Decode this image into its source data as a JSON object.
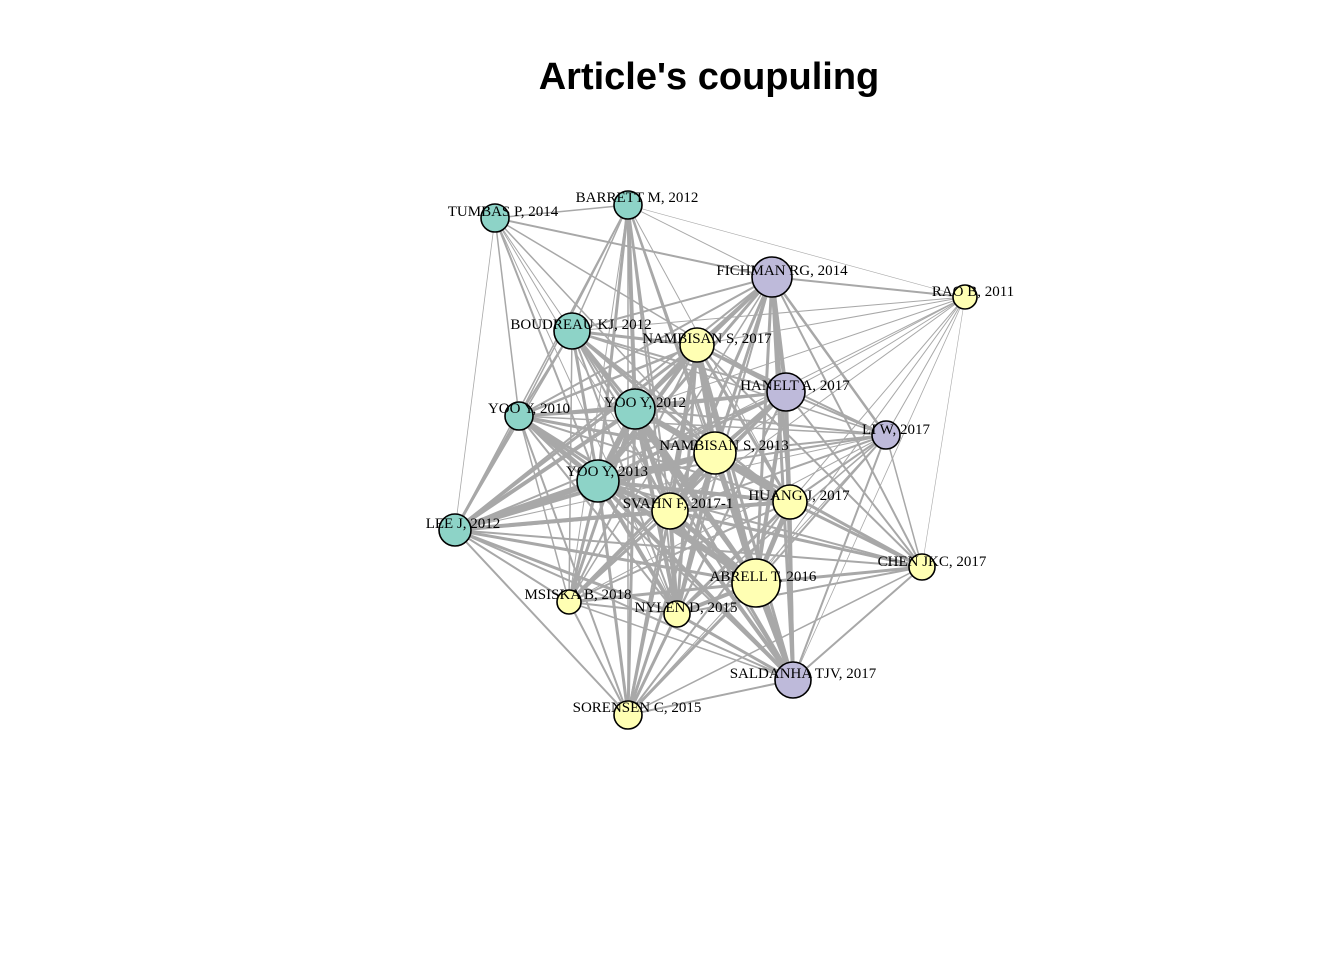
{
  "title": "Article's coupuling",
  "colors": {
    "cluster_1": "#8dd3c7",
    "cluster_2": "#ffffb3",
    "cluster_3": "#bebada",
    "edge": "#a8a8a8"
  },
  "nodes": [
    {
      "id": "tumbas",
      "label": "TUMBAS P, 2014",
      "cluster": 1
    },
    {
      "id": "barrett",
      "label": "BARRETT M, 2012",
      "cluster": 1
    },
    {
      "id": "fichman",
      "label": "FICHMAN RG, 2014",
      "cluster": 3
    },
    {
      "id": "rao",
      "label": "RAO B, 2011",
      "cluster": 2
    },
    {
      "id": "boudreau",
      "label": "BOUDREAU KJ, 2012",
      "cluster": 1
    },
    {
      "id": "nambisan17",
      "label": "NAMBISAN S, 2017",
      "cluster": 2
    },
    {
      "id": "hanelt",
      "label": "HANELT A, 2017",
      "cluster": 3
    },
    {
      "id": "yoo2010",
      "label": "YOO Y, 2010",
      "cluster": 1
    },
    {
      "id": "yoo2012",
      "label": "YOO Y, 2012",
      "cluster": 1
    },
    {
      "id": "liw",
      "label": "LI W, 2017",
      "cluster": 3
    },
    {
      "id": "nambisan13",
      "label": "NAMBISAN S, 2013",
      "cluster": 2
    },
    {
      "id": "yoo2013",
      "label": "YOO Y, 2013",
      "cluster": 1
    },
    {
      "id": "huang",
      "label": "HUANG J, 2017",
      "cluster": 2
    },
    {
      "id": "svahn",
      "label": "SVAHN F, 2017-1",
      "cluster": 2
    },
    {
      "id": "lee",
      "label": "LEE J, 2012",
      "cluster": 1
    },
    {
      "id": "chen",
      "label": "CHEN JKC, 2017",
      "cluster": 2
    },
    {
      "id": "abrell",
      "label": "ABRELL T, 2016",
      "cluster": 2
    },
    {
      "id": "msiska",
      "label": "MSISKA B, 2018",
      "cluster": 2
    },
    {
      "id": "nylen",
      "label": "NYLEN D, 2015",
      "cluster": 2
    },
    {
      "id": "saldanha",
      "label": "SALDANHA TJV, 2017",
      "cluster": 3
    },
    {
      "id": "sorensen",
      "label": "SORENSEN C, 2015",
      "cluster": 2
    }
  ]
}
